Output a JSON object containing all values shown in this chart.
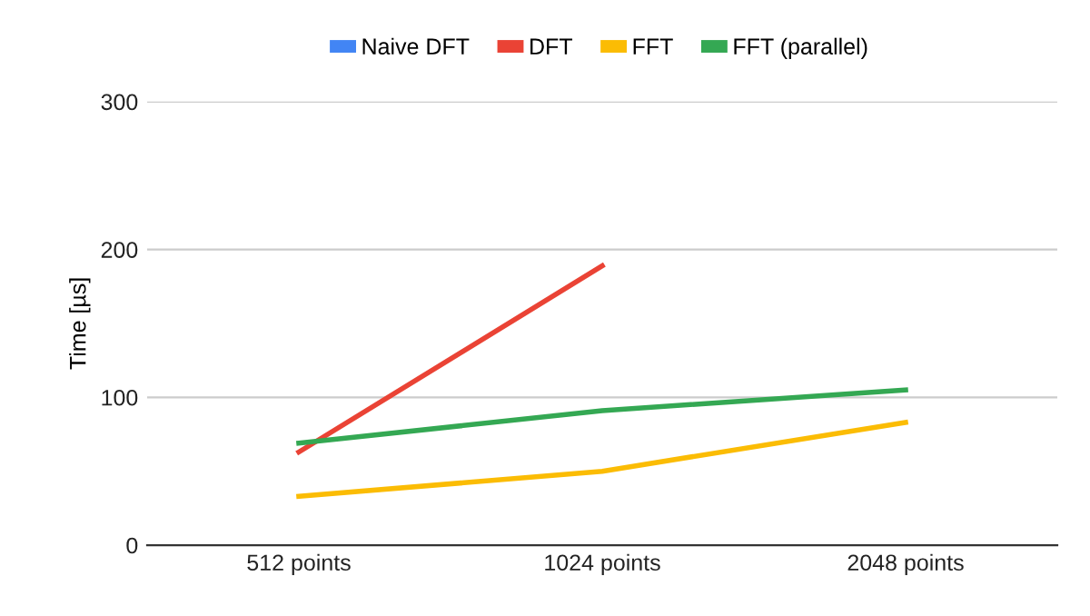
{
  "chart_data": {
    "type": "line",
    "ylabel": "Time [µs]",
    "categories": [
      "512 points",
      "1024 points",
      "2048 points"
    ],
    "series": [
      {
        "name": "Naive DFT",
        "color": "#4285f4",
        "values": [
          null,
          null,
          null
        ]
      },
      {
        "name": "DFT",
        "color": "#ea4335",
        "values": [
          63,
          189,
          null
        ]
      },
      {
        "name": "FFT",
        "color": "#fbbc04",
        "values": [
          33,
          50,
          83
        ]
      },
      {
        "name": "FFT (parallel)",
        "color": "#34a853",
        "values": [
          69,
          91,
          105
        ]
      }
    ],
    "ylim": [
      0,
      300
    ],
    "yticks": [
      0,
      100,
      200,
      300
    ],
    "grid": "y",
    "legend": "top",
    "marker": "none",
    "line_style": "solid"
  }
}
